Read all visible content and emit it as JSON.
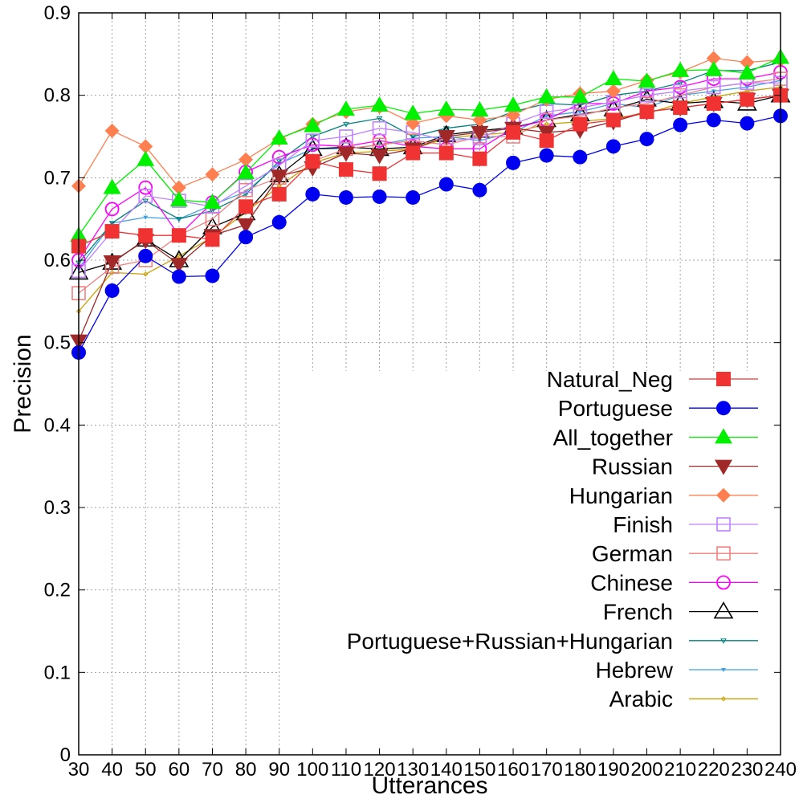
{
  "chart_data": {
    "type": "line",
    "title": "",
    "xlabel": "Utterances",
    "ylabel": "Precision",
    "x": [
      30,
      40,
      50,
      60,
      70,
      80,
      90,
      100,
      110,
      120,
      130,
      140,
      150,
      160,
      170,
      180,
      190,
      200,
      210,
      220,
      230,
      240
    ],
    "x_tick_labels": [
      "30",
      "40",
      "50",
      "60",
      "70",
      "80",
      "90",
      "100",
      "110",
      "120",
      "130",
      "140",
      "150",
      "160",
      "170",
      "180",
      "190",
      "200",
      "210",
      "220",
      "230",
      "240"
    ],
    "xlim": [
      30,
      240
    ],
    "ylim": [
      0,
      0.9
    ],
    "y_ticks": [
      0,
      0.1,
      0.2,
      0.3,
      0.4,
      0.5,
      0.6,
      0.7,
      0.8,
      0.9
    ],
    "y_tick_labels": [
      "0",
      "0.1",
      "0.2",
      "0.3",
      "0.4",
      "0.5",
      "0.6",
      "0.7",
      "0.8",
      "0.9"
    ],
    "grid": true,
    "legend_position": "bottom-right",
    "series": [
      {
        "name": "Natural_Neg",
        "color": "#f03232",
        "marker": "filled-square",
        "values": [
          0.617,
          0.635,
          0.63,
          0.63,
          0.625,
          0.665,
          0.68,
          0.72,
          0.71,
          0.705,
          0.73,
          0.73,
          0.723,
          0.755,
          0.745,
          0.765,
          0.77,
          0.78,
          0.785,
          0.79,
          0.795,
          0.8
        ]
      },
      {
        "name": "Portuguese",
        "color": "#0000f0",
        "marker": "filled-circle",
        "values": [
          0.488,
          0.563,
          0.605,
          0.58,
          0.581,
          0.628,
          0.646,
          0.68,
          0.676,
          0.677,
          0.676,
          0.692,
          0.685,
          0.718,
          0.727,
          0.725,
          0.738,
          0.747,
          0.764,
          0.77,
          0.766,
          0.775
        ]
      },
      {
        "name": "All_together",
        "color": "#00f000",
        "marker": "filled-triangle-up",
        "values": [
          0.63,
          0.688,
          0.722,
          0.673,
          0.67,
          0.706,
          0.748,
          0.763,
          0.783,
          0.788,
          0.778,
          0.783,
          0.782,
          0.788,
          0.798,
          0.798,
          0.82,
          0.817,
          0.83,
          0.831,
          0.827,
          0.846
        ]
      },
      {
        "name": "Russian",
        "color": "#a02828",
        "marker": "filled-triangle-down",
        "values": [
          0.502,
          0.598,
          0.624,
          0.595,
          0.63,
          0.643,
          0.702,
          0.712,
          0.73,
          0.727,
          0.735,
          0.75,
          0.755,
          0.76,
          0.755,
          0.758,
          0.768,
          0.78,
          0.785,
          0.79,
          0.795,
          0.8
        ]
      },
      {
        "name": "Hungarian",
        "color": "#ff7f50",
        "marker": "filled-diamond",
        "values": [
          0.69,
          0.757,
          0.738,
          0.688,
          0.704,
          0.722,
          0.747,
          0.765,
          0.78,
          0.786,
          0.766,
          0.775,
          0.77,
          0.776,
          0.795,
          0.802,
          0.805,
          0.818,
          0.828,
          0.845,
          0.84,
          0.843
        ]
      },
      {
        "name": "Finish",
        "color": "#c080ff",
        "marker": "open-square",
        "values": [
          0.587,
          0.635,
          0.678,
          0.672,
          0.665,
          0.69,
          0.715,
          0.745,
          0.75,
          0.76,
          0.755,
          0.745,
          0.748,
          0.765,
          0.78,
          0.785,
          0.792,
          0.8,
          0.805,
          0.81,
          0.815,
          0.815
        ]
      },
      {
        "name": "German",
        "color": "#f08080",
        "marker": "open-square",
        "values": [
          0.56,
          0.592,
          0.6,
          0.63,
          0.65,
          0.685,
          0.7,
          0.72,
          0.735,
          0.74,
          0.745,
          0.74,
          0.75,
          0.75,
          0.77,
          0.775,
          0.785,
          0.79,
          0.8,
          0.81,
          0.815,
          0.82
        ]
      },
      {
        "name": "Chinese",
        "color": "#ff00ff",
        "marker": "open-circle",
        "values": [
          0.6,
          0.662,
          0.688,
          0.63,
          0.67,
          0.707,
          0.725,
          0.74,
          0.738,
          0.745,
          0.738,
          0.735,
          0.735,
          0.76,
          0.77,
          0.79,
          0.79,
          0.805,
          0.81,
          0.82,
          0.82,
          0.828
        ]
      },
      {
        "name": "French",
        "color": "#000000",
        "marker": "open-triangle-up",
        "values": [
          0.585,
          0.597,
          0.625,
          0.6,
          0.64,
          0.657,
          0.703,
          0.735,
          0.737,
          0.735,
          0.737,
          0.752,
          0.757,
          0.761,
          0.77,
          0.777,
          0.783,
          0.795,
          0.79,
          0.793,
          0.79,
          0.8
        ]
      },
      {
        "name": "Portuguese+Russian+Hungarian",
        "color": "#008080",
        "marker": "small-triangle-down",
        "values": [
          0.597,
          0.645,
          0.672,
          0.65,
          0.66,
          0.68,
          0.72,
          0.75,
          0.765,
          0.772,
          0.75,
          0.76,
          0.765,
          0.78,
          0.79,
          0.788,
          0.8,
          0.805,
          0.815,
          0.83,
          0.83,
          0.84
        ]
      },
      {
        "name": "Hebrew",
        "color": "#40a0e0",
        "marker": "small-filled-triangle-down",
        "values": [
          0.59,
          0.645,
          0.652,
          0.65,
          0.667,
          0.683,
          0.717,
          0.735,
          0.735,
          0.74,
          0.748,
          0.75,
          0.745,
          0.755,
          0.775,
          0.78,
          0.79,
          0.785,
          0.8,
          0.805,
          0.81,
          0.818
        ]
      },
      {
        "name": "Arabic",
        "color": "#c8a000",
        "marker": "small-diamond",
        "values": [
          0.538,
          0.585,
          0.583,
          0.605,
          0.628,
          0.658,
          0.69,
          0.718,
          0.73,
          0.732,
          0.735,
          0.748,
          0.752,
          0.755,
          0.765,
          0.768,
          0.772,
          0.778,
          0.79,
          0.798,
          0.805,
          0.81
        ]
      }
    ]
  }
}
